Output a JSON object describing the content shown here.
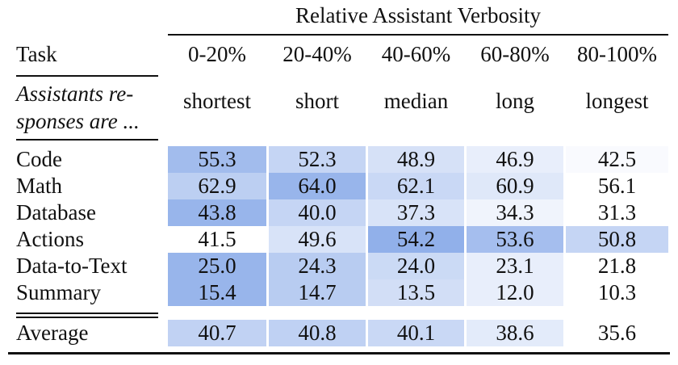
{
  "table": {
    "group_header": "Relative Assistant Verbosity",
    "task_header": "Task",
    "bins": [
      "0-20%",
      "20-40%",
      "40-60%",
      "60-80%",
      "80-100%"
    ],
    "row_desc_line1": "Assistants re-",
    "row_desc_line2": "sponses are ...",
    "descriptors": [
      "shortest",
      "short",
      "median",
      "long",
      "longest"
    ],
    "rows": [
      {
        "task": "Code",
        "values": [
          "55.3",
          "52.3",
          "48.9",
          "46.9",
          "42.5"
        ],
        "shade": [
          0.72,
          0.45,
          0.32,
          0.18,
          0.05
        ]
      },
      {
        "task": "Math",
        "values": [
          "62.9",
          "64.0",
          "62.1",
          "60.9",
          "56.1"
        ],
        "shade": [
          0.52,
          0.8,
          0.42,
          0.25,
          0.0
        ]
      },
      {
        "task": "Database",
        "values": [
          "43.8",
          "40.0",
          "37.3",
          "34.3",
          "31.3"
        ],
        "shade": [
          0.8,
          0.45,
          0.3,
          0.12,
          0.0
        ]
      },
      {
        "task": "Actions",
        "values": [
          "41.5",
          "49.6",
          "54.2",
          "53.6",
          "50.8"
        ],
        "shade": [
          0.0,
          0.3,
          0.85,
          0.7,
          0.45
        ]
      },
      {
        "task": "Data-to-Text",
        "values": [
          "25.0",
          "24.3",
          "24.0",
          "23.1",
          "21.8"
        ],
        "shade": [
          0.8,
          0.55,
          0.4,
          0.18,
          0.0
        ]
      },
      {
        "task": "Summary",
        "values": [
          "15.4",
          "14.7",
          "13.5",
          "12.0",
          "10.3"
        ],
        "shade": [
          0.8,
          0.55,
          0.35,
          0.18,
          0.0
        ]
      }
    ],
    "average": {
      "task": "Average",
      "values": [
        "40.7",
        "40.8",
        "40.1",
        "38.6",
        "35.6"
      ],
      "shade": [
        0.48,
        0.5,
        0.42,
        0.22,
        0.0
      ]
    }
  },
  "colors": {
    "cell_min": "#ffffff",
    "cell_max": "#7ea2e6"
  }
}
